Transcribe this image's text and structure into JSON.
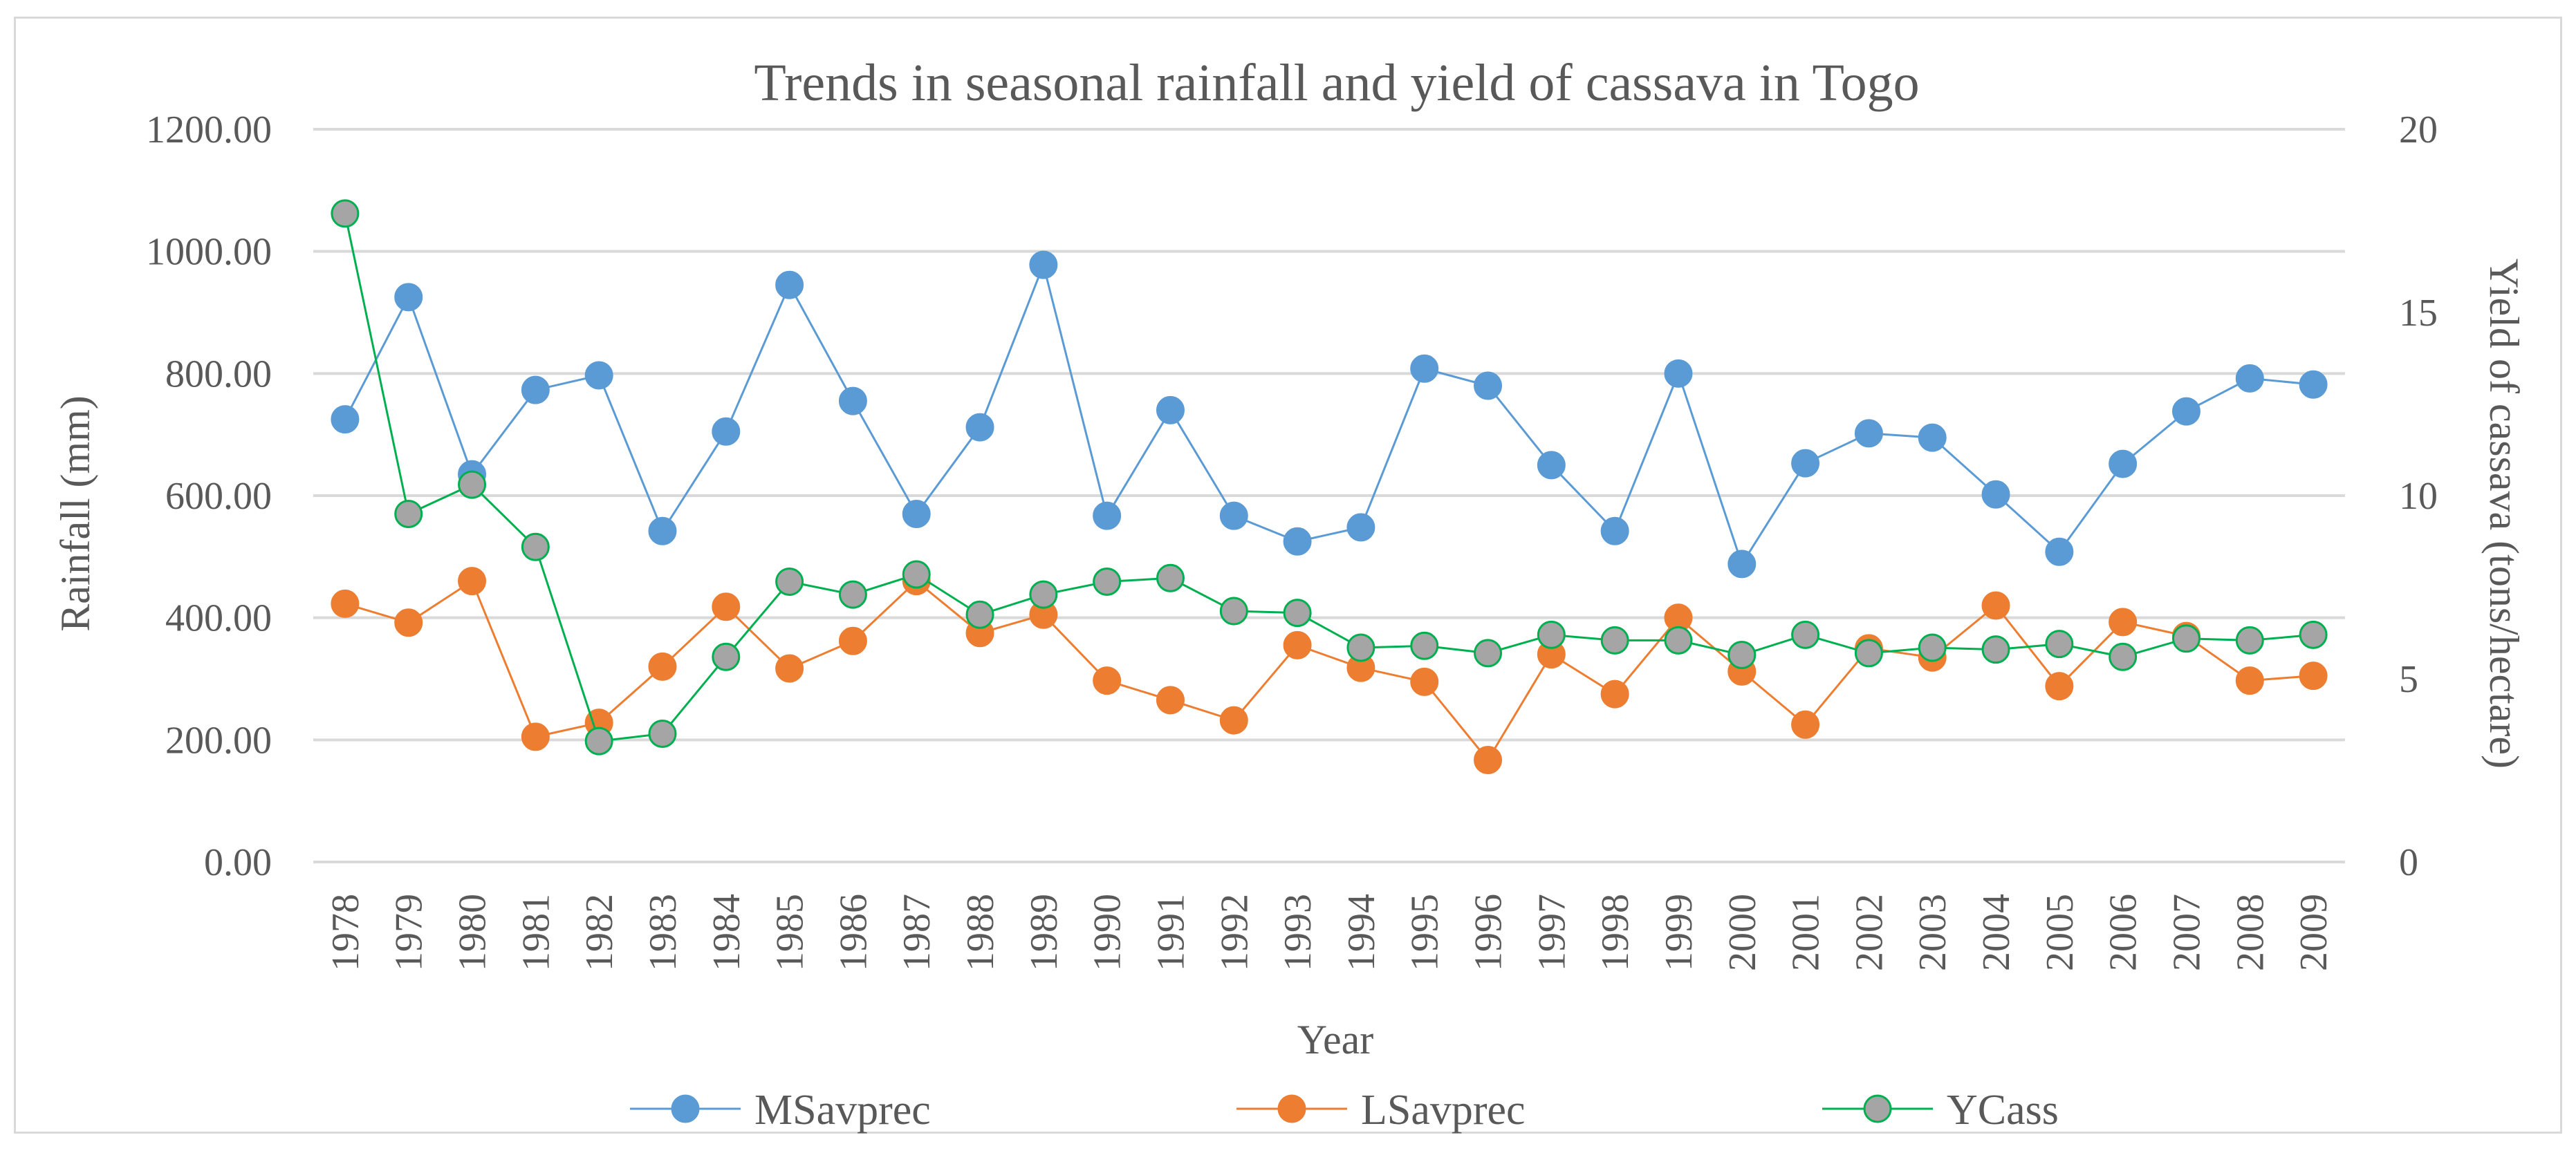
{
  "chart_data": {
    "type": "line",
    "title": "Trends in seasonal rainfall and yield of cassava in Togo",
    "xlabel": "Year",
    "ylabel": "Rainfall (mm)",
    "y2label": "Yield of cassava (tons/hectare)",
    "ylim": [
      0,
      1200
    ],
    "y2lim": [
      0,
      20
    ],
    "yticks": [
      "0.00",
      "200.00",
      "400.00",
      "600.00",
      "800.00",
      "1000.00",
      "1200.00"
    ],
    "y2ticks": [
      "0",
      "5",
      "10",
      "15",
      "20"
    ],
    "x": [
      "1978",
      "1979",
      "1980",
      "1981",
      "1982",
      "1983",
      "1984",
      "1985",
      "1986",
      "1987",
      "1988",
      "1989",
      "1990",
      "1991",
      "1992",
      "1993",
      "1994",
      "1995",
      "1996",
      "1997",
      "1998",
      "1999",
      "2000",
      "2001",
      "2002",
      "2003",
      "2004",
      "2005",
      "2006",
      "2007",
      "2008",
      "2009"
    ],
    "series": [
      {
        "name": "MSavprec",
        "axis": "left",
        "color": "#5b9bd5",
        "marker_edge": "#5b9bd5",
        "values": [
          725,
          925,
          635,
          773,
          797,
          542,
          705,
          945,
          755,
          570,
          712,
          978,
          567,
          740,
          567,
          525,
          548,
          808,
          780,
          650,
          542,
          800,
          488,
          653,
          702,
          695,
          602,
          508,
          652,
          738,
          792,
          782
        ]
      },
      {
        "name": "LSavprec",
        "axis": "left",
        "color": "#ed7d31",
        "marker_edge": "#ed7d31",
        "values": [
          423,
          392,
          460,
          205,
          228,
          320,
          418,
          317,
          362,
          460,
          375,
          405,
          297,
          265,
          232,
          355,
          318,
          295,
          167,
          340,
          275,
          400,
          312,
          225,
          350,
          335,
          420,
          288,
          393,
          370,
          297,
          305
        ]
      },
      {
        "name": "YCass",
        "axis": "right",
        "color": "#00b050",
        "marker_fill": "#a5a5a5",
        "marker_edge": "#00b050",
        "values": [
          17.7,
          9.5,
          10.3,
          8.6,
          3.3,
          3.5,
          5.6,
          7.65,
          7.3,
          7.85,
          6.75,
          7.3,
          7.65,
          7.75,
          6.85,
          6.8,
          5.85,
          5.9,
          5.7,
          6.2,
          6.05,
          6.05,
          5.65,
          6.2,
          5.7,
          5.85,
          5.8,
          5.95,
          5.6,
          6.1,
          6.05,
          6.2
        ]
      }
    ],
    "legend": "bottom",
    "grid": true
  }
}
